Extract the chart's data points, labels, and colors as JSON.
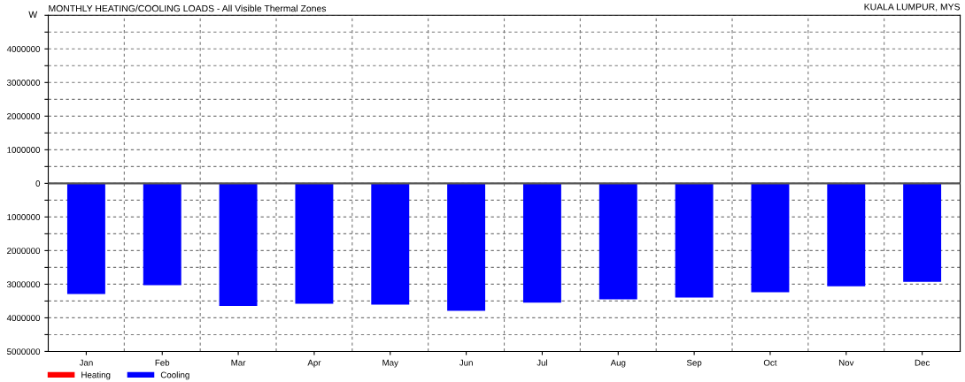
{
  "chart_data": {
    "type": "bar",
    "title": "MONTHLY HEATING/COOLING LOADS - All Visible Thermal Zones",
    "ylabel": "W",
    "annotations": [
      "KUALA LUMPUR, MYS"
    ],
    "categories": [
      "Jan",
      "Feb",
      "Mar",
      "Apr",
      "May",
      "Jun",
      "Jul",
      "Aug",
      "Sep",
      "Oct",
      "Nov",
      "Dec"
    ],
    "series": [
      {
        "name": "Heating",
        "color": "#ff0000",
        "values": [
          0,
          0,
          0,
          0,
          0,
          0,
          0,
          0,
          0,
          0,
          0,
          0
        ]
      },
      {
        "name": "Cooling",
        "color": "#0000ff",
        "values": [
          -3290000,
          -3030000,
          -3650000,
          -3580000,
          -3610000,
          -3790000,
          -3550000,
          -3450000,
          -3400000,
          -3240000,
          -3060000,
          -2930000
        ]
      }
    ],
    "ylim": [
      -5000000,
      5000000
    ],
    "yticks": [
      {
        "value": 5000000,
        "label": null
      },
      {
        "value": 4500000,
        "label": null
      },
      4000000,
      {
        "value": 3500000,
        "label": null
      },
      3000000,
      {
        "value": 2500000,
        "label": null
      },
      2000000,
      {
        "value": 1500000,
        "label": null
      },
      1000000,
      {
        "value": 500000,
        "label": null
      },
      0,
      {
        "value": -500000,
        "label": null
      },
      {
        "value": -1000000,
        "label": "1000000"
      },
      {
        "value": -1500000,
        "label": null
      },
      {
        "value": -2000000,
        "label": "2000000"
      },
      {
        "value": -2500000,
        "label": null
      },
      {
        "value": -3000000,
        "label": "3000000"
      },
      {
        "value": -3500000,
        "label": null
      },
      {
        "value": -4000000,
        "label": "4000000"
      },
      {
        "value": -4500000,
        "label": null
      },
      {
        "value": -5000000,
        "label": "5000000"
      }
    ],
    "grid": true,
    "legend": "bottom left"
  }
}
